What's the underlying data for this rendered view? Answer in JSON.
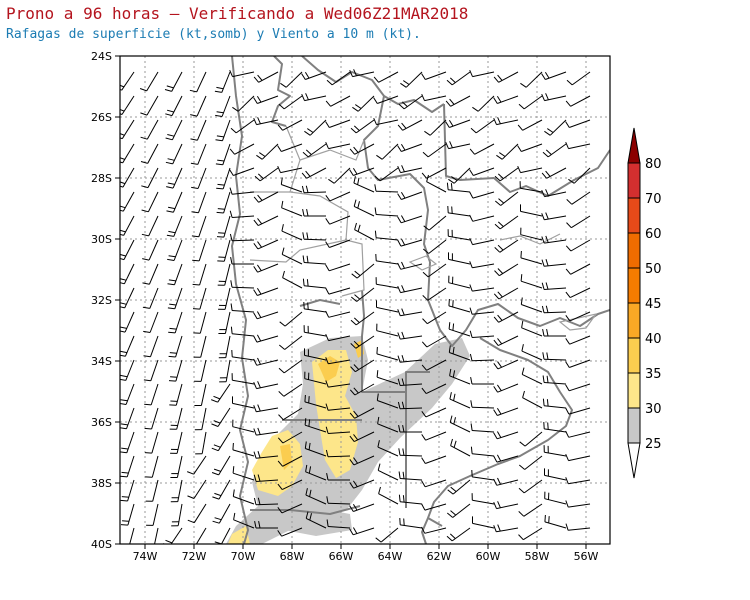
{
  "header": {
    "title": "Prono a 96 horas — Verificando a Wed06Z21MAR2018",
    "subtitle": "Rafagas de superficie (kt,somb) y Viento a 10 m (kt)."
  },
  "map": {
    "lon_range": [
      -75,
      -55
    ],
    "lat_range": [
      -40,
      -24
    ],
    "lon_ticks": [
      "74W",
      "72W",
      "70W",
      "68W",
      "66W",
      "64W",
      "62W",
      "60W",
      "58W",
      "56W"
    ],
    "lat_ticks": [
      "24S",
      "26S",
      "28S",
      "30S",
      "32S",
      "34S",
      "36S",
      "38S",
      "40S"
    ],
    "grid": true
  },
  "colorbar": {
    "levels": [
      "25",
      "30",
      "35",
      "40",
      "45",
      "50",
      "60",
      "70",
      "80"
    ],
    "colors": [
      "#c8c8c8",
      "#fde68a",
      "#fbcd4f",
      "#f9a825",
      "#f57c00",
      "#ef6c00",
      "#e64a19",
      "#d32f2f",
      "#b71c1c"
    ],
    "top_arrow_color": "#8b0000",
    "bottom_arrow_color": "#ffffff"
  },
  "colors": {
    "border_gray": "#808080",
    "gust_25_30": "#c8c8c8",
    "gust_30_35": "#fde68a",
    "gust_35_40": "#fbcd4f"
  }
}
